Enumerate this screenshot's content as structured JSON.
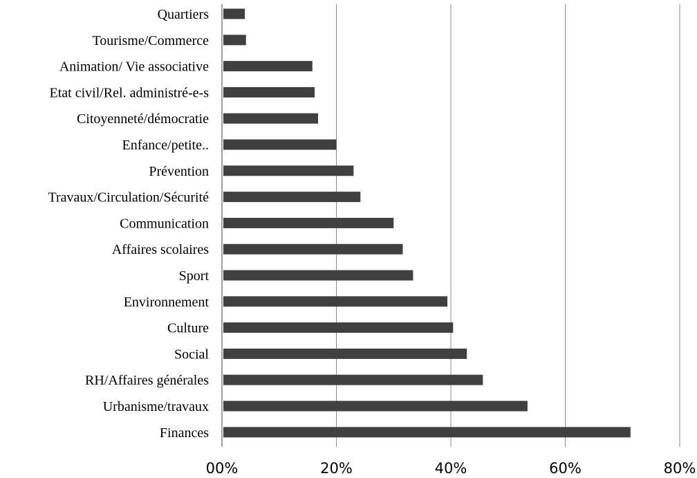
{
  "chart_data": {
    "type": "bar",
    "orientation": "horizontal",
    "categories": [
      "Quartiers",
      "Tourisme/Commerce",
      "Animation/ Vie associative",
      "Etat civil/Rel. administré-e-s",
      "Citoyenneté/démocratie",
      "Enfance/petite..",
      "Prévention",
      "Travaux/Circulation/Sécurité",
      "Communication",
      "Affaires scolaires",
      "Sport",
      "Environnement",
      "Culture",
      "Social",
      "RH/Affaires générales",
      "Urbanisme/travaux",
      "Finances"
    ],
    "values": [
      4,
      4.2,
      15.8,
      16.2,
      16.8,
      20,
      23,
      24.2,
      30,
      31.6,
      33.4,
      39.4,
      40.4,
      42.8,
      45.6,
      53.4,
      71.4
    ],
    "xlim": [
      0,
      80
    ],
    "xticks": [
      "00%",
      "20%",
      "40%",
      "60%",
      "80%"
    ],
    "grid": true,
    "bar_color": "#404040",
    "grid_color": "#8a8a8a"
  }
}
